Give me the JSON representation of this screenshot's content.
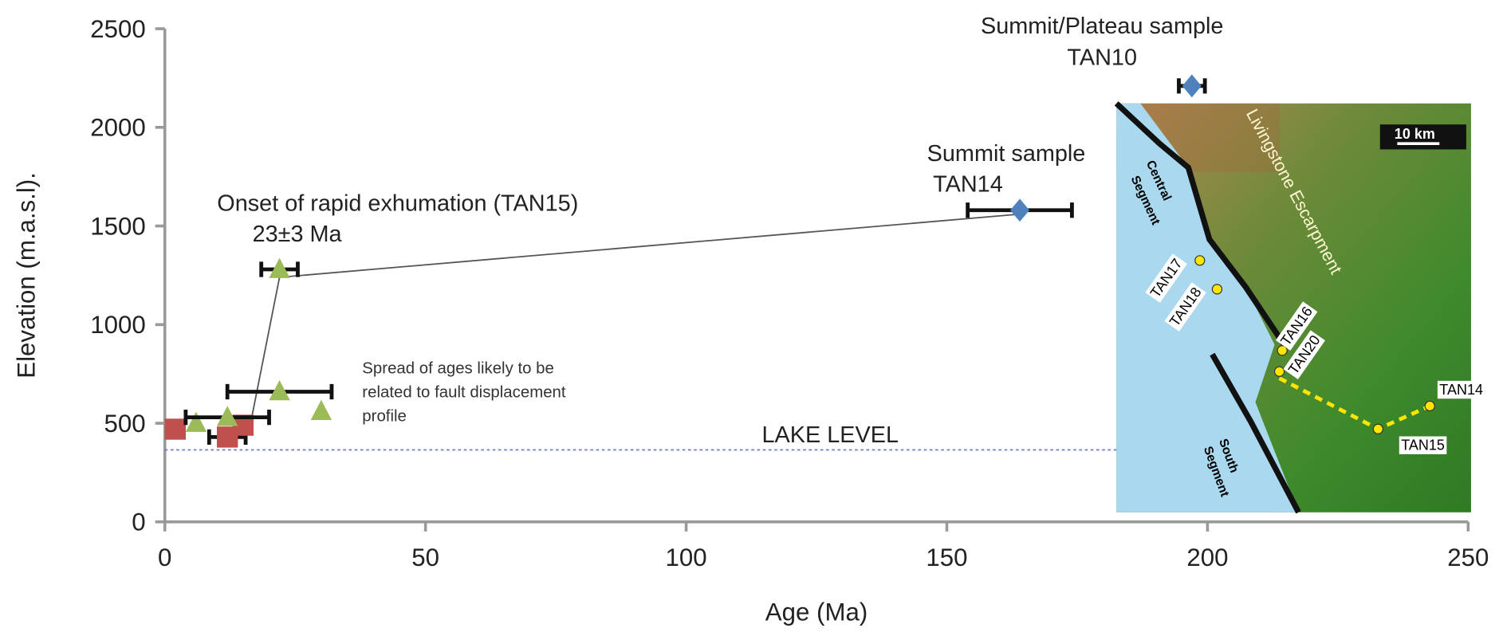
{
  "chart_data": {
    "type": "scatter",
    "xlabel": "Age  (Ma)",
    "ylabel": "Elevation (m.a.s.l).",
    "xlim": [
      0,
      250
    ],
    "xticks": [
      0,
      50,
      100,
      150,
      200,
      250
    ],
    "ylim": [
      0,
      2500
    ],
    "yticks": [
      0,
      500,
      1000,
      1500,
      2000,
      2500
    ],
    "series": [
      {
        "color": "#c0504d",
        "marker": "square",
        "x": [
          2,
          12,
          15
        ],
        "y": [
          470,
          430,
          490
        ],
        "xerr": [
          null,
          3.5,
          null
        ]
      },
      {
        "color": "#9bbb59",
        "marker": "triangle",
        "x": [
          6,
          12,
          22,
          30,
          22
        ],
        "y": [
          500,
          530,
          660,
          560,
          1280
        ],
        "xerr": [
          null,
          8,
          10,
          null,
          3.5
        ]
      },
      {
        "color": "#4f81bd",
        "marker": "diamond",
        "x": [
          164,
          197
        ],
        "y": [
          1580,
          2210
        ],
        "xerr": [
          10,
          2.5
        ]
      }
    ],
    "connector": {
      "color": "#555",
      "x": [
        16,
        22,
        164
      ],
      "y": [
        440,
        1240,
        1560
      ]
    },
    "lake_level": {
      "value": 365,
      "label": "LAKE LEVEL"
    },
    "annotations": [
      [
        "Summit/Plateau sample",
        "TAN10"
      ],
      [
        "Summit sample",
        "TAN14"
      ],
      [
        "Onset of rapid exhumation (TAN15)",
        "23±3 Ma"
      ],
      [
        "Spread of ages likely to be",
        "related to fault displacement",
        "profile"
      ]
    ],
    "map_labels": {
      "scale": "10 km",
      "escarpment": "Livingstone Escarpment",
      "central": [
        "Central",
        "Segment"
      ],
      "south": [
        "South",
        "Segment"
      ],
      "samples": [
        "TAN17",
        "TAN18",
        "TAN16",
        "TAN20",
        "TAN14",
        "TAN15"
      ]
    }
  }
}
